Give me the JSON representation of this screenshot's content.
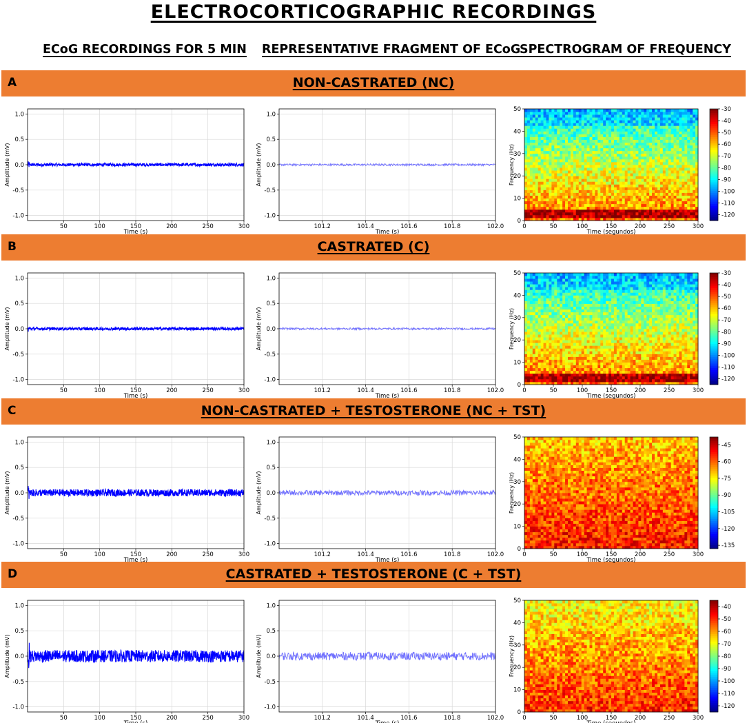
{
  "title": "ELECTROCORTICOGRAPHIC RECORDINGS",
  "column_headers": [
    "ECoG RECORDINGS FOR 5 MIN",
    "REPRESENTATIVE FRAGMENT OF ECoG",
    "SPECTROGRAM OF FREQUENCY"
  ],
  "colors": {
    "banner": "#ed7d31",
    "signal": "#0000ff",
    "fragment": "#6f6fff"
  },
  "chart_data": [
    {
      "panel": "A",
      "type": "line",
      "title": "NON-CASTRATED (NC)",
      "view": "ECoG 5 min",
      "xlabel": "Time (s)",
      "ylabel": "Amplitude (mV)",
      "xlim": [
        0,
        300
      ],
      "ylim": [
        -1.1,
        1.1
      ],
      "xticks": [
        50,
        100,
        150,
        200,
        250,
        300
      ],
      "yticks": [
        -1.0,
        -0.5,
        0.0,
        0.5,
        1.0
      ],
      "amplitude_band": [
        -0.03,
        0.03
      ],
      "grid": true
    },
    {
      "panel": "A",
      "type": "line",
      "title": "NON-CASTRATED (NC)",
      "view": "fragment",
      "xlabel": "Time (s)",
      "ylabel": "Amplitude (mV)",
      "xlim": [
        101.0,
        102.0
      ],
      "ylim": [
        -1.1,
        1.1
      ],
      "xticks": [
        101.2,
        101.4,
        101.6,
        101.8,
        102.0
      ],
      "yticks": [
        -1.0,
        -0.5,
        0.0,
        0.5,
        1.0
      ],
      "amplitude_band": [
        -0.02,
        0.02
      ],
      "grid": true
    },
    {
      "panel": "A",
      "type": "heatmap",
      "title": "NON-CASTRATED (NC)",
      "view": "spectrogram",
      "xlabel": "Time (segundos)",
      "ylabel": "Frequency (Hz)",
      "xlim": [
        0,
        300
      ],
      "ylim": [
        0,
        50
      ],
      "xticks": [
        0,
        50,
        100,
        150,
        200,
        250,
        300
      ],
      "yticks": [
        0,
        10,
        20,
        30,
        40,
        50
      ],
      "colorbar_ticks": [
        -30,
        -40,
        -50,
        -60,
        -70,
        -80,
        -90,
        -100,
        -110,
        -120
      ],
      "colorbar_range": [
        -125,
        -30
      ]
    },
    {
      "panel": "B",
      "type": "line",
      "title": "CASTRATED (C)",
      "view": "ECoG 5 min",
      "xlabel": "Time (s)",
      "ylabel": "Amplitude (mV)",
      "xlim": [
        0,
        300
      ],
      "ylim": [
        -1.1,
        1.1
      ],
      "xticks": [
        50,
        100,
        150,
        200,
        250,
        300
      ],
      "yticks": [
        -1.0,
        -0.5,
        0.0,
        0.5,
        1.0
      ],
      "amplitude_band": [
        -0.03,
        0.03
      ],
      "grid": true
    },
    {
      "panel": "B",
      "type": "line",
      "title": "CASTRATED (C)",
      "view": "fragment",
      "xlabel": "Time (s)",
      "ylabel": "Amplitude (mV)",
      "xlim": [
        101.0,
        102.0
      ],
      "ylim": [
        -1.1,
        1.1
      ],
      "xticks": [
        101.2,
        101.4,
        101.6,
        101.8,
        102.0
      ],
      "yticks": [
        -1.0,
        -0.5,
        0.0,
        0.5,
        1.0
      ],
      "amplitude_band": [
        -0.02,
        0.02
      ],
      "grid": true
    },
    {
      "panel": "B",
      "type": "heatmap",
      "title": "CASTRATED (C)",
      "view": "spectrogram",
      "xlabel": "Time (segundos)",
      "ylabel": "Frequency (Hz)",
      "xlim": [
        0,
        300
      ],
      "ylim": [
        0,
        50
      ],
      "xticks": [
        0,
        50,
        100,
        150,
        200,
        250,
        300
      ],
      "yticks": [
        0,
        10,
        20,
        30,
        40,
        50
      ],
      "colorbar_ticks": [
        -30,
        -40,
        -50,
        -60,
        -70,
        -80,
        -90,
        -100,
        -110,
        -120
      ],
      "colorbar_range": [
        -125,
        -30
      ]
    },
    {
      "panel": "C",
      "type": "line",
      "title": "NON-CASTRATED + TESTOSTERONE (NC + TST)",
      "view": "ECoG 5 min",
      "xlabel": "Time (s)",
      "ylabel": "Amplitude (mV)",
      "xlim": [
        0,
        300
      ],
      "ylim": [
        -1.1,
        1.1
      ],
      "xticks": [
        50,
        100,
        150,
        200,
        250,
        300
      ],
      "yticks": [
        -1.0,
        -0.5,
        0.0,
        0.5,
        1.0
      ],
      "amplitude_band": [
        -0.07,
        0.07
      ],
      "grid": true
    },
    {
      "panel": "C",
      "type": "line",
      "title": "NON-CASTRATED + TESTOSTERONE (NC + TST)",
      "view": "fragment",
      "xlabel": "Time (s)",
      "ylabel": "Amplitude (mV)",
      "xlim": [
        101.0,
        102.0
      ],
      "ylim": [
        -1.1,
        1.1
      ],
      "xticks": [
        101.2,
        101.4,
        101.6,
        101.8,
        102.0
      ],
      "yticks": [
        -1.0,
        -0.5,
        0.0,
        0.5,
        1.0
      ],
      "amplitude_band": [
        -0.05,
        0.05
      ],
      "grid": true
    },
    {
      "panel": "C",
      "type": "heatmap",
      "title": "NON-CASTRATED + TESTOSTERONE (NC + TST)",
      "view": "spectrogram",
      "xlabel": "Time (segundos)",
      "ylabel": "Frequency (Hz)",
      "xlim": [
        0,
        300
      ],
      "ylim": [
        0,
        50
      ],
      "xticks": [
        0,
        50,
        100,
        150,
        200,
        250,
        300
      ],
      "yticks": [
        0,
        10,
        20,
        30,
        40,
        50
      ],
      "colorbar_ticks": [
        -45,
        -60,
        -75,
        -90,
        -105,
        -120,
        -135
      ],
      "colorbar_range": [
        -138,
        -38
      ]
    },
    {
      "panel": "D",
      "type": "line",
      "title": "CASTRATED + TESTOSTERONE (C + TST)",
      "view": "ECoG 5 min",
      "xlabel": "Time (s)",
      "ylabel": "Amplitude (mV)",
      "xlim": [
        0,
        300
      ],
      "ylim": [
        -1.1,
        1.1
      ],
      "xticks": [
        50,
        100,
        150,
        200,
        250,
        300
      ],
      "yticks": [
        -1.0,
        -0.5,
        0.0,
        0.5,
        1.0
      ],
      "amplitude_band": [
        -0.12,
        0.12
      ],
      "grid": true
    },
    {
      "panel": "D",
      "type": "line",
      "title": "CASTRATED + TESTOSTERONE (C + TST)",
      "view": "fragment",
      "xlabel": "Time (s)",
      "ylabel": "Amplitude (mV)",
      "xlim": [
        101.0,
        102.0
      ],
      "ylim": [
        -1.1,
        1.1
      ],
      "xticks": [
        101.2,
        101.4,
        101.6,
        101.8,
        102.0
      ],
      "yticks": [
        -1.0,
        -0.5,
        0.0,
        0.5,
        1.0
      ],
      "amplitude_band": [
        -0.08,
        0.08
      ],
      "grid": true
    },
    {
      "panel": "D",
      "type": "heatmap",
      "title": "CASTRATED + TESTOSTERONE (C + TST)",
      "view": "spectrogram",
      "xlabel": "Time (segundos)",
      "ylabel": "Frequency (Hz)",
      "xlim": [
        0,
        300
      ],
      "ylim": [
        0,
        50
      ],
      "xticks": [
        0,
        50,
        100,
        150,
        200,
        250,
        300
      ],
      "yticks": [
        0,
        10,
        20,
        30,
        40,
        50
      ],
      "colorbar_ticks": [
        -40,
        -50,
        -60,
        -70,
        -80,
        -90,
        -100,
        -110,
        -120
      ],
      "colorbar_range": [
        -125,
        -35
      ]
    }
  ]
}
